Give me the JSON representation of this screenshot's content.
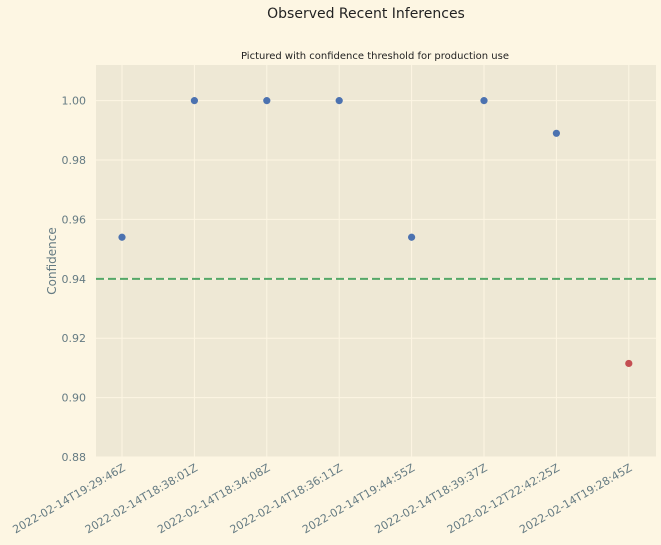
{
  "chart_data": {
    "type": "scatter",
    "title": "Observed Recent Inferences",
    "subtitle": "Pictured with confidence threshold for production use",
    "xlabel": "",
    "ylabel": "Confidence",
    "categories": [
      "2022-02-14T19:29:46Z",
      "2022-02-14T18:38:01Z",
      "2022-02-14T18:34:08Z",
      "2022-02-14T18:36:11Z",
      "2022-02-14T19:44:55Z",
      "2022-02-14T18:39:37Z",
      "2022-02-12T22:42:25Z",
      "2022-02-14T19:28:45Z"
    ],
    "values": [
      0.954,
      1.0,
      1.0,
      1.0,
      0.954,
      1.0,
      0.989,
      0.9115
    ],
    "ylim": [
      0.88,
      1.012
    ],
    "yticks": [
      0.88,
      0.9,
      0.92,
      0.94,
      0.96,
      0.98,
      1.0
    ],
    "threshold": 0.94,
    "grid": true,
    "colors": {
      "above": "#4c72b0",
      "below": "#c44e52",
      "threshold": "#55a868",
      "plot_bg": "#eee8d5",
      "grid": "#fdf6e3",
      "text": "#657b83"
    }
  }
}
